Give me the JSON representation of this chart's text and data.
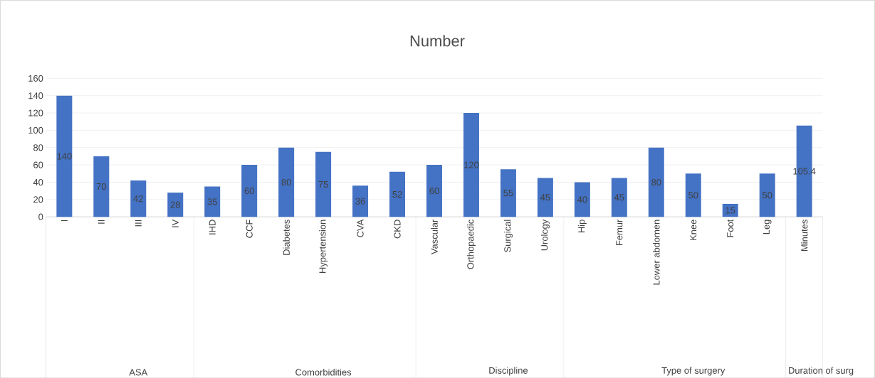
{
  "chart_data": {
    "type": "bar",
    "title": "Number",
    "categories": [
      "I",
      "II",
      "III",
      "IV",
      "IHD",
      "CCF",
      "Diabetes",
      "Hypertension",
      "CVA",
      "CKD",
      "Vascular",
      "Orthopaedic",
      "Surgical",
      "Urology",
      "Hip",
      "Femur",
      "Lower abdomen",
      "Knee",
      "Foot",
      "Leg",
      "Minutes"
    ],
    "values": [
      140,
      70,
      42,
      28,
      35,
      60,
      80,
      75,
      36,
      52,
      60,
      120,
      55,
      45,
      40,
      45,
      80,
      50,
      15,
      50,
      105.4
    ],
    "color": "#4472c4",
    "ylim": [
      0,
      160
    ],
    "yticks": [
      0,
      20,
      40,
      60,
      80,
      100,
      120,
      140,
      160
    ],
    "grid": "y",
    "data_labels": true,
    "annotations": [
      "ASA",
      "Comorbidities",
      "Discipline",
      "Type of surgery",
      "Duration of surg"
    ]
  }
}
